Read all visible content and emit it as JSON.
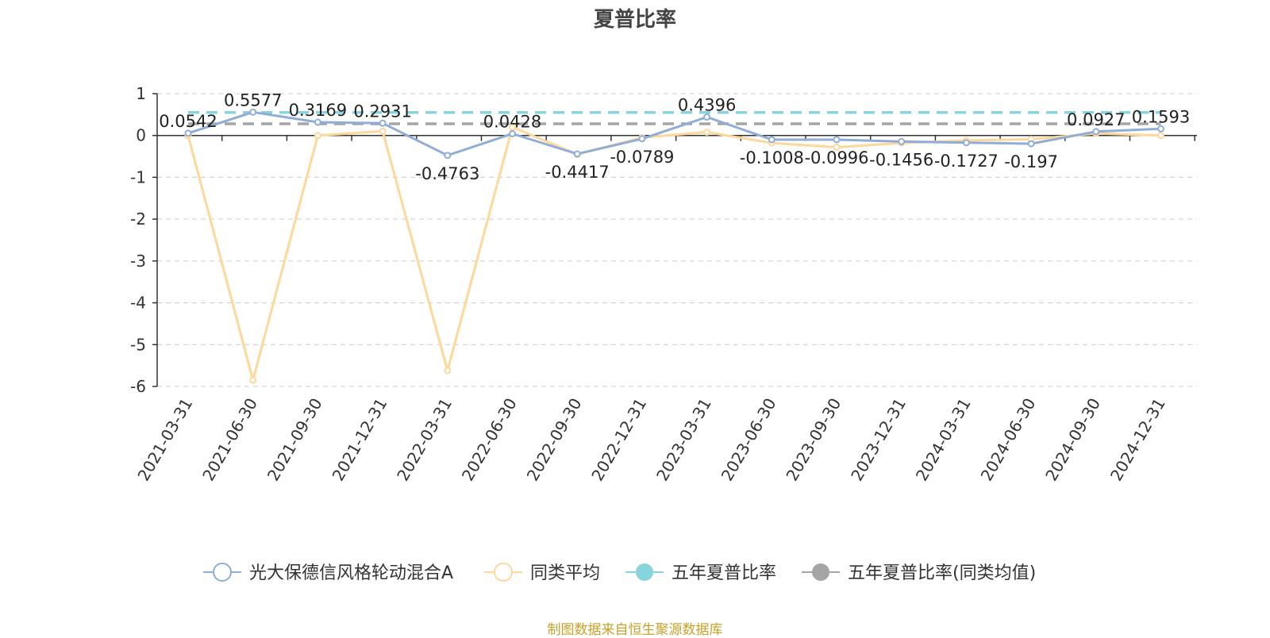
{
  "chart_data": {
    "type": "line",
    "title": "夏普比率",
    "source_note": "制图数据来自恒生聚源数据库",
    "categories": [
      "2021-03-31",
      "2021-06-30",
      "2021-09-30",
      "2021-12-31",
      "2022-03-31",
      "2022-06-30",
      "2022-09-30",
      "2022-12-31",
      "2023-03-31",
      "2023-06-30",
      "2023-09-30",
      "2023-12-31",
      "2024-03-31",
      "2024-06-30",
      "2024-09-30",
      "2024-12-31"
    ],
    "ylim": [
      -6,
      1
    ],
    "yticks": [
      "1",
      "0",
      "-1",
      "-2",
      "-3",
      "-4",
      "-5",
      "-6"
    ],
    "grid": true,
    "legend_position": "bottom",
    "series": [
      {
        "name": "光大保德信风格轮动混合A",
        "color": "#8fadd8",
        "values": [
          0.0542,
          0.5577,
          0.3169,
          0.2931,
          -0.4763,
          0.0428,
          -0.4417,
          -0.0789,
          0.4396,
          -0.1008,
          -0.0996,
          -0.1456,
          -0.1727,
          -0.197,
          0.0927,
          0.1593
        ],
        "labels": [
          "0.0542",
          "0.5577",
          "0.3169",
          "0.2931",
          "-0.4763",
          "0.0428",
          "-0.4417",
          "-0.0789",
          "0.4396",
          "-0.1008",
          "-0.0996",
          "-0.1456",
          "-0.1727",
          "-0.197",
          "0.0927",
          "0.1593"
        ]
      },
      {
        "name": "同类平均",
        "color": "#fdd89a",
        "values": [
          0.0,
          -5.85,
          0.0,
          0.1,
          -5.62,
          0.2,
          -0.45,
          -0.05,
          0.08,
          -0.18,
          -0.28,
          -0.18,
          -0.12,
          -0.09,
          0.05,
          0.0
        ]
      },
      {
        "name": "五年夏普比率",
        "color": "#87d4db",
        "constant": 0.55
      },
      {
        "name": "五年夏普比率(同类均值)",
        "color": "#a5a5a5",
        "constant": 0.28
      }
    ]
  }
}
